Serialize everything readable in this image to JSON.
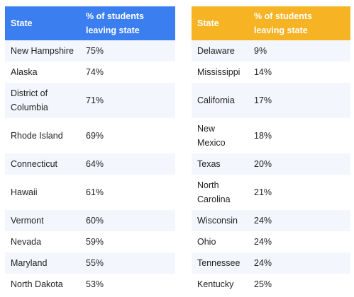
{
  "left_table": {
    "headers": [
      "State",
      "% of students leaving state"
    ],
    "rows": [
      {
        "state": "New Hampshire",
        "pct": "75%"
      },
      {
        "state": "Alaska",
        "pct": "74%"
      },
      {
        "state": "District of Columbia",
        "pct": "71%"
      },
      {
        "state": "Rhode Island",
        "pct": "69%"
      },
      {
        "state": "Connecticut",
        "pct": "64%"
      },
      {
        "state": "Hawaii",
        "pct": "61%"
      },
      {
        "state": "Vermont",
        "pct": "60%"
      },
      {
        "state": "Nevada",
        "pct": "59%"
      },
      {
        "state": "Maryland",
        "pct": "55%"
      },
      {
        "state": "North Dakota",
        "pct": "53%"
      }
    ]
  },
  "right_table": {
    "headers": [
      "State",
      "% of students leaving state"
    ],
    "rows": [
      {
        "state": "Delaware",
        "pct": "9%"
      },
      {
        "state": "Mississippi",
        "pct": "14%"
      },
      {
        "state": "California",
        "pct": "17%"
      },
      {
        "state": "New Mexico",
        "pct": "18%"
      },
      {
        "state": "Texas",
        "pct": "20%"
      },
      {
        "state": "North Carolina",
        "pct": "21%"
      },
      {
        "state": "Wisconsin",
        "pct": "24%"
      },
      {
        "state": "Ohio",
        "pct": "24%"
      },
      {
        "state": "Tennessee",
        "pct": "24%"
      },
      {
        "state": "Kentucky",
        "pct": "25%"
      }
    ]
  },
  "colors": {
    "left_header": "#3b7ef0",
    "right_header": "#f6b324",
    "row_stripe": "#f3f6fc"
  }
}
